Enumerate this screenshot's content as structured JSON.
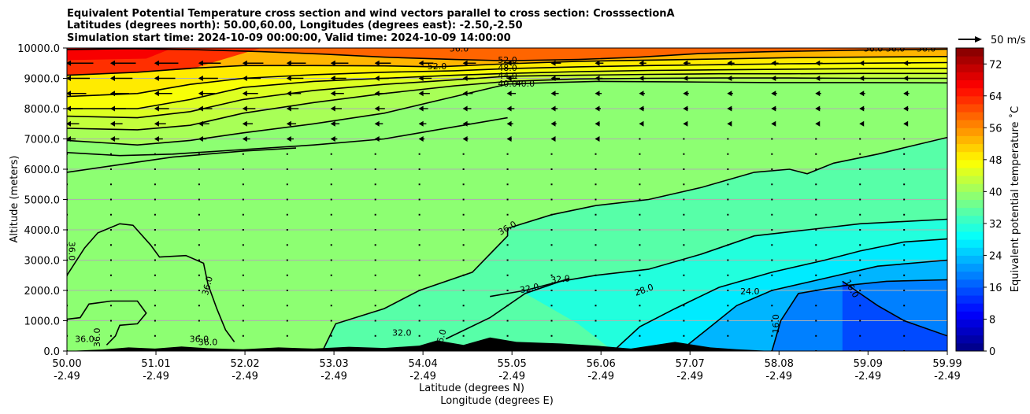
{
  "chart_data": {
    "type": "contour_cross_section",
    "title_lines": [
      "Equivalent Potential Temperature cross section and wind vectors parallel to cross section: CrosssectionA",
      "Latitudes (degrees north): 50.00,60.00, Longitudes (degrees east): -2.50,-2.50",
      "Simulation start time: 2024-10-09 00:00:00, Valid time: 2024-10-09 14:00:00"
    ],
    "ylabel": "Altitude (meters)",
    "xlabel_1": "Latitude (degrees N)",
    "xlabel_2": "Longitude (degrees E)",
    "x_range": [
      50.0,
      59.99
    ],
    "ylim": [
      0,
      10000
    ],
    "x_ticks": [
      {
        "lat": "50.00",
        "lon": "-2.49",
        "value": 50.0
      },
      {
        "lat": "51.01",
        "lon": "-2.49",
        "value": 51.01
      },
      {
        "lat": "52.02",
        "lon": "-2.49",
        "value": 52.02
      },
      {
        "lat": "53.03",
        "lon": "-2.49",
        "value": 53.03
      },
      {
        "lat": "54.04",
        "lon": "-2.49",
        "value": 54.04
      },
      {
        "lat": "55.05",
        "lon": "-2.49",
        "value": 55.05
      },
      {
        "lat": "56.06",
        "lon": "-2.49",
        "value": 56.06
      },
      {
        "lat": "57.07",
        "lon": "-2.49",
        "value": 57.07
      },
      {
        "lat": "58.08",
        "lon": "-2.49",
        "value": 58.08
      },
      {
        "lat": "59.09",
        "lon": "-2.49",
        "value": 59.09
      },
      {
        "lat": "59.99",
        "lon": "-2.49",
        "value": 59.99
      }
    ],
    "y_ticks": [
      {
        "label": "0.0",
        "value": 0
      },
      {
        "label": "1000.0",
        "value": 1000
      },
      {
        "label": "2000.0",
        "value": 2000
      },
      {
        "label": "3000.0",
        "value": 3000
      },
      {
        "label": "4000.0",
        "value": 4000
      },
      {
        "label": "5000.0",
        "value": 5000
      },
      {
        "label": "6000.0",
        "value": 6000
      },
      {
        "label": "7000.0",
        "value": 7000
      },
      {
        "label": "8000.0",
        "value": 8000
      },
      {
        "label": "9000.0",
        "value": 9000
      },
      {
        "label": "10000.0",
        "value": 10000
      }
    ],
    "grid": "horizontal",
    "colorbar": {
      "label": "Equivalent potential temperature ˚C",
      "min": 0,
      "max": 76,
      "ticks": [
        "0",
        "8",
        "16",
        "24",
        "32",
        "40",
        "48",
        "56",
        "64",
        "72"
      ],
      "tick_values": [
        0,
        8,
        16,
        24,
        32,
        40,
        48,
        56,
        64,
        72
      ]
    },
    "wind_key": {
      "label": "50 m/s",
      "value": 50
    },
    "contour_labels": [
      {
        "text": "52.0",
        "x": 55.0,
        "y": 9580,
        "rot": 0
      },
      {
        "text": "52.0",
        "x": 54.2,
        "y": 9380,
        "rot": 0
      },
      {
        "text": "48.0",
        "x": 55.0,
        "y": 9320,
        "rot": 0
      },
      {
        "text": "44.0",
        "x": 55.0,
        "y": 9070,
        "rot": 0
      },
      {
        "text": "40.0",
        "x": 55.0,
        "y": 8810,
        "rot": 0
      },
      {
        "text": "40.0",
        "x": 55.2,
        "y": 8810,
        "rot": 0
      },
      {
        "text": "36.0",
        "x": 55.0,
        "y": 4040,
        "rot": -30
      },
      {
        "text": "32.0",
        "x": 55.25,
        "y": 2050,
        "rot": -12
      },
      {
        "text": "32.0",
        "x": 55.6,
        "y": 2350,
        "rot": -6
      },
      {
        "text": "28.0",
        "x": 56.55,
        "y": 2000,
        "rot": -20
      },
      {
        "text": "24.0",
        "x": 57.75,
        "y": 1950,
        "rot": 0
      },
      {
        "text": "16.0",
        "x": 58.9,
        "y": 2050,
        "rot": 60
      },
      {
        "text": "16.0",
        "x": 58.05,
        "y": 900,
        "rot": -90
      },
      {
        "text": "36.0",
        "x": 50.05,
        "y": 3300,
        "rot": 90
      },
      {
        "text": "36.0",
        "x": 51.6,
        "y": 2150,
        "rot": -75
      },
      {
        "text": "36.0",
        "x": 50.2,
        "y": 380,
        "rot": 0
      },
      {
        "text": "36.0",
        "x": 50.35,
        "y": 450,
        "rot": -90
      },
      {
        "text": "36.0",
        "x": 51.5,
        "y": 380,
        "rot": 0
      },
      {
        "text": "36.0",
        "x": 51.6,
        "y": 270,
        "rot": 0
      },
      {
        "text": "32.0",
        "x": 53.8,
        "y": 580,
        "rot": 0
      },
      {
        "text": "36.0",
        "x": 54.25,
        "y": 400,
        "rot": -75
      },
      {
        "text": "56.0",
        "x": 54.45,
        "y": 9960,
        "rot": 0
      },
      {
        "text": "56.0",
        "x": 59.15,
        "y": 9960,
        "rot": 0
      },
      {
        "text": "56.0",
        "x": 59.4,
        "y": 9960,
        "rot": 0
      },
      {
        "text": "56.0",
        "x": 59.75,
        "y": 9960,
        "rot": 0
      }
    ],
    "contour_lines": [
      {
        "level": 52,
        "points": [
          [
            50.0,
            9950
          ],
          [
            50.7,
            9980
          ],
          [
            51.4,
            9950
          ],
          [
            52.2,
            9880
          ],
          [
            52.9,
            9800
          ],
          [
            53.6,
            9700
          ],
          [
            54.4,
            9620
          ],
          [
            55.0,
            9580
          ],
          [
            55.8,
            9620
          ],
          [
            56.5,
            9700
          ],
          [
            57.2,
            9820
          ],
          [
            58.0,
            9880
          ],
          [
            59.0,
            9930
          ],
          [
            59.99,
            9960
          ]
        ]
      },
      {
        "level": 50,
        "points": [
          [
            50.0,
            9100
          ],
          [
            50.8,
            9200
          ],
          [
            51.4,
            9330
          ],
          [
            52.0,
            9420
          ],
          [
            52.8,
            9420
          ],
          [
            53.6,
            9410
          ],
          [
            54.2,
            9380
          ],
          [
            55.0,
            9480
          ],
          [
            55.8,
            9560
          ],
          [
            56.6,
            9600
          ],
          [
            57.4,
            9640
          ],
          [
            58.2,
            9680
          ],
          [
            59.0,
            9700
          ],
          [
            59.99,
            9720
          ]
        ]
      },
      {
        "level": 48,
        "points": [
          [
            50.0,
            8400
          ],
          [
            50.8,
            8500
          ],
          [
            51.4,
            8800
          ],
          [
            52.0,
            9000
          ],
          [
            52.8,
            9120
          ],
          [
            53.6,
            9200
          ],
          [
            54.4,
            9250
          ],
          [
            55.0,
            9320
          ],
          [
            55.8,
            9380
          ],
          [
            56.6,
            9420
          ],
          [
            57.4,
            9450
          ],
          [
            58.2,
            9480
          ],
          [
            59.0,
            9500
          ],
          [
            59.99,
            9520
          ]
        ]
      },
      {
        "level": 46,
        "points": [
          [
            50.0,
            8000
          ],
          [
            50.8,
            8000
          ],
          [
            51.4,
            8300
          ],
          [
            52.0,
            8700
          ],
          [
            52.8,
            8900
          ],
          [
            53.6,
            9000
          ],
          [
            54.4,
            9100
          ],
          [
            55.0,
            9160
          ],
          [
            55.8,
            9220
          ],
          [
            56.6,
            9260
          ],
          [
            57.4,
            9280
          ],
          [
            58.2,
            9300
          ],
          [
            59.0,
            9320
          ],
          [
            59.99,
            9330
          ]
        ]
      },
      {
        "level": 44,
        "points": [
          [
            50.0,
            7750
          ],
          [
            50.8,
            7700
          ],
          [
            51.4,
            7900
          ],
          [
            52.0,
            8300
          ],
          [
            52.8,
            8600
          ],
          [
            53.6,
            8800
          ],
          [
            54.4,
            8950
          ],
          [
            55.0,
            9070
          ],
          [
            55.8,
            9100
          ],
          [
            56.6,
            9130
          ],
          [
            57.4,
            9150
          ],
          [
            58.2,
            9150
          ],
          [
            59.0,
            9160
          ],
          [
            59.99,
            9160
          ]
        ]
      },
      {
        "level": 42,
        "points": [
          [
            50.0,
            7350
          ],
          [
            50.8,
            7300
          ],
          [
            51.4,
            7450
          ],
          [
            52.0,
            7850
          ],
          [
            52.8,
            8200
          ],
          [
            53.6,
            8500
          ],
          [
            54.4,
            8750
          ],
          [
            55.0,
            8900
          ],
          [
            55.8,
            8980
          ],
          [
            56.6,
            9000
          ],
          [
            57.4,
            9010
          ],
          [
            58.2,
            9010
          ],
          [
            59.0,
            9000
          ],
          [
            59.99,
            9000
          ]
        ]
      },
      {
        "level": 40,
        "points": [
          [
            50.0,
            6950
          ],
          [
            50.8,
            6800
          ],
          [
            51.4,
            6950
          ],
          [
            52.0,
            7200
          ],
          [
            52.8,
            7500
          ],
          [
            53.6,
            7850
          ],
          [
            54.4,
            8400
          ],
          [
            55.0,
            8810
          ],
          [
            55.5,
            8860
          ],
          [
            56.0,
            8900
          ],
          [
            57.0,
            8880
          ],
          [
            58.0,
            8860
          ],
          [
            59.0,
            8860
          ],
          [
            59.99,
            8850
          ]
        ]
      },
      {
        "level": 38,
        "points": [
          [
            50.0,
            6550
          ],
          [
            50.6,
            6450
          ],
          [
            51.2,
            6500
          ],
          [
            52.0,
            6650
          ],
          [
            52.8,
            6800
          ],
          [
            53.6,
            7000
          ],
          [
            54.4,
            7400
          ],
          [
            55.0,
            7700
          ]
        ]
      },
      {
        "level": 37,
        "points": [
          [
            50.0,
            5900
          ],
          [
            50.6,
            6150
          ],
          [
            51.2,
            6400
          ],
          [
            52.0,
            6600
          ],
          [
            52.6,
            6700
          ]
        ]
      },
      {
        "level": 36,
        "points": [
          [
            50.0,
            2500
          ],
          [
            50.2,
            3400
          ],
          [
            50.35,
            3900
          ],
          [
            50.6,
            4200
          ],
          [
            50.75,
            4150
          ],
          [
            50.95,
            3500
          ],
          [
            51.05,
            3100
          ],
          [
            51.35,
            3150
          ],
          [
            51.55,
            2900
          ],
          [
            51.6,
            2200
          ],
          [
            51.7,
            1400
          ],
          [
            51.8,
            700
          ],
          [
            51.9,
            300
          ]
        ]
      },
      {
        "level": 36.1,
        "points": [
          [
            50.0,
            1050
          ],
          [
            50.15,
            1100
          ],
          [
            50.25,
            1550
          ],
          [
            50.5,
            1650
          ],
          [
            50.8,
            1650
          ],
          [
            50.9,
            1250
          ],
          [
            50.8,
            900
          ],
          [
            50.6,
            850
          ],
          [
            50.55,
            500
          ],
          [
            50.45,
            200
          ]
        ]
      },
      {
        "level": 36.2,
        "points": [
          [
            55.0,
            4050
          ],
          [
            55.5,
            4500
          ],
          [
            56.0,
            4800
          ],
          [
            56.6,
            5000
          ],
          [
            57.2,
            5400
          ],
          [
            57.8,
            5900
          ],
          [
            58.2,
            6000
          ],
          [
            58.4,
            5850
          ],
          [
            58.7,
            6200
          ],
          [
            59.2,
            6500
          ],
          [
            59.99,
            7050
          ]
        ]
      },
      {
        "level": 32,
        "points": [
          [
            52.9,
            0
          ],
          [
            53.05,
            900
          ],
          [
            53.6,
            1400
          ],
          [
            54.0,
            2000
          ],
          [
            54.6,
            2600
          ],
          [
            55.0,
            3800
          ],
          [
            55.0,
            4050
          ]
        ]
      },
      {
        "level": 32.1,
        "points": [
          [
            54.8,
            1800
          ],
          [
            55.2,
            2000
          ],
          [
            55.6,
            2300
          ],
          [
            56.0,
            2500
          ],
          [
            56.6,
            2700
          ],
          [
            57.2,
            3200
          ],
          [
            57.8,
            3800
          ],
          [
            58.4,
            4000
          ],
          [
            59.0,
            4200
          ],
          [
            59.99,
            4350
          ]
        ]
      },
      {
        "level": 32.2,
        "points": [
          [
            54.3,
            400
          ],
          [
            54.8,
            1100
          ],
          [
            55.2,
            1900
          ],
          [
            55.7,
            2400
          ]
        ]
      },
      {
        "level": 28,
        "points": [
          [
            56.2,
            0
          ],
          [
            56.5,
            800
          ],
          [
            56.9,
            1400
          ],
          [
            57.4,
            2100
          ],
          [
            58.0,
            2600
          ],
          [
            58.6,
            3000
          ],
          [
            59.0,
            3300
          ],
          [
            59.5,
            3600
          ],
          [
            59.99,
            3700
          ]
        ]
      },
      {
        "level": 24,
        "points": [
          [
            57.0,
            100
          ],
          [
            57.3,
            800
          ],
          [
            57.6,
            1500
          ],
          [
            58.0,
            2000
          ],
          [
            58.6,
            2400
          ],
          [
            59.2,
            2800
          ],
          [
            59.99,
            3000
          ]
        ]
      },
      {
        "level": 20,
        "points": [
          [
            58.0,
            0
          ],
          [
            58.1,
            1000
          ],
          [
            58.3,
            1900
          ],
          [
            58.8,
            2150
          ],
          [
            59.3,
            2300
          ],
          [
            59.99,
            2350
          ]
        ]
      },
      {
        "level": 16,
        "points": [
          [
            58.8,
            2300
          ],
          [
            59.0,
            1900
          ],
          [
            59.2,
            1500
          ],
          [
            59.5,
            1000
          ],
          [
            59.99,
            500
          ]
        ]
      }
    ],
    "terrain": [
      [
        50.0,
        0
      ],
      [
        50.4,
        50
      ],
      [
        50.7,
        120
      ],
      [
        51.0,
        80
      ],
      [
        51.3,
        150
      ],
      [
        51.6,
        90
      ],
      [
        52.0,
        60
      ],
      [
        52.4,
        120
      ],
      [
        52.8,
        80
      ],
      [
        53.2,
        140
      ],
      [
        53.6,
        100
      ],
      [
        54.0,
        180
      ],
      [
        54.2,
        350
      ],
      [
        54.5,
        200
      ],
      [
        54.8,
        450
      ],
      [
        55.1,
        300
      ],
      [
        55.6,
        250
      ],
      [
        56.0,
        180
      ],
      [
        56.4,
        80
      ],
      [
        56.9,
        300
      ],
      [
        57.3,
        120
      ],
      [
        57.6,
        60
      ],
      [
        58.0,
        0
      ]
    ]
  }
}
